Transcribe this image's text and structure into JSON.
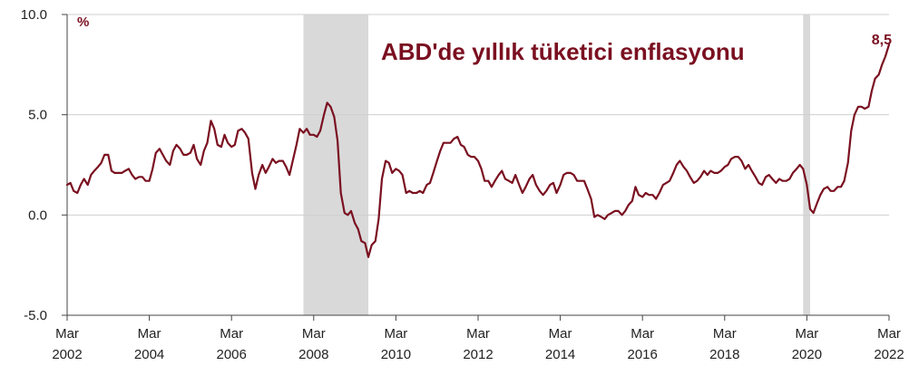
{
  "chart_data": {
    "type": "line",
    "title": "ABD'de yıllık tüketici enflasyonu",
    "unit_label": "%",
    "end_label": "8,5",
    "ylim": [
      -5.0,
      10.0
    ],
    "yticks": [
      "10.0",
      "5.0",
      "0.0",
      "-5.0"
    ],
    "ytick_values": [
      10,
      5,
      0,
      -5
    ],
    "xlim": [
      2002.17,
      2022.17
    ],
    "xticks": [
      {
        "value": 2002.17,
        "month": "Mar",
        "year": "2002"
      },
      {
        "value": 2004.17,
        "month": "Mar",
        "year": "2004"
      },
      {
        "value": 2006.17,
        "month": "Mar",
        "year": "2006"
      },
      {
        "value": 2008.17,
        "month": "Mar",
        "year": "2008"
      },
      {
        "value": 2010.17,
        "month": "Mar",
        "year": "2010"
      },
      {
        "value": 2012.17,
        "month": "Mar",
        "year": "2012"
      },
      {
        "value": 2014.17,
        "month": "Mar",
        "year": "2014"
      },
      {
        "value": 2016.17,
        "month": "Mar",
        "year": "2016"
      },
      {
        "value": 2018.17,
        "month": "Mar",
        "year": "2018"
      },
      {
        "value": 2020.17,
        "month": "Mar",
        "year": "2020"
      },
      {
        "value": 2022.17,
        "month": "Mar",
        "year": "2022"
      }
    ],
    "recessions": [
      [
        2007.92,
        2009.5
      ],
      [
        2020.08,
        2020.25
      ]
    ],
    "grid": true,
    "line_color": "#7a1020",
    "recession_color": "#d9d9d9",
    "series": [
      {
        "points": [
          [
            2002.17,
            1.5
          ],
          [
            2002.25,
            1.6
          ],
          [
            2002.33,
            1.2
          ],
          [
            2002.42,
            1.1
          ],
          [
            2002.5,
            1.5
          ],
          [
            2002.58,
            1.8
          ],
          [
            2002.67,
            1.5
          ],
          [
            2002.75,
            2.0
          ],
          [
            2002.83,
            2.2
          ],
          [
            2002.92,
            2.4
          ],
          [
            2003.0,
            2.6
          ],
          [
            2003.08,
            3.0
          ],
          [
            2003.17,
            3.0
          ],
          [
            2003.25,
            2.2
          ],
          [
            2003.33,
            2.1
          ],
          [
            2003.42,
            2.1
          ],
          [
            2003.5,
            2.1
          ],
          [
            2003.58,
            2.2
          ],
          [
            2003.67,
            2.3
          ],
          [
            2003.75,
            2.0
          ],
          [
            2003.83,
            1.8
          ],
          [
            2003.92,
            1.9
          ],
          [
            2004.0,
            1.9
          ],
          [
            2004.08,
            1.7
          ],
          [
            2004.17,
            1.7
          ],
          [
            2004.25,
            2.3
          ],
          [
            2004.33,
            3.1
          ],
          [
            2004.42,
            3.3
          ],
          [
            2004.5,
            3.0
          ],
          [
            2004.58,
            2.7
          ],
          [
            2004.67,
            2.5
          ],
          [
            2004.75,
            3.2
          ],
          [
            2004.83,
            3.5
          ],
          [
            2004.92,
            3.3
          ],
          [
            2005.0,
            3.0
          ],
          [
            2005.08,
            3.0
          ],
          [
            2005.17,
            3.1
          ],
          [
            2005.25,
            3.5
          ],
          [
            2005.33,
            2.8
          ],
          [
            2005.42,
            2.5
          ],
          [
            2005.5,
            3.2
          ],
          [
            2005.58,
            3.6
          ],
          [
            2005.67,
            4.7
          ],
          [
            2005.75,
            4.3
          ],
          [
            2005.83,
            3.5
          ],
          [
            2005.92,
            3.4
          ],
          [
            2006.0,
            4.0
          ],
          [
            2006.08,
            3.6
          ],
          [
            2006.17,
            3.4
          ],
          [
            2006.25,
            3.5
          ],
          [
            2006.33,
            4.2
          ],
          [
            2006.42,
            4.3
          ],
          [
            2006.5,
            4.1
          ],
          [
            2006.58,
            3.8
          ],
          [
            2006.67,
            2.1
          ],
          [
            2006.75,
            1.3
          ],
          [
            2006.83,
            2.0
          ],
          [
            2006.92,
            2.5
          ],
          [
            2007.0,
            2.1
          ],
          [
            2007.08,
            2.4
          ],
          [
            2007.17,
            2.8
          ],
          [
            2007.25,
            2.6
          ],
          [
            2007.33,
            2.7
          ],
          [
            2007.42,
            2.7
          ],
          [
            2007.5,
            2.4
          ],
          [
            2007.58,
            2.0
          ],
          [
            2007.67,
            2.8
          ],
          [
            2007.75,
            3.5
          ],
          [
            2007.83,
            4.3
          ],
          [
            2007.92,
            4.1
          ],
          [
            2008.0,
            4.3
          ],
          [
            2008.08,
            4.0
          ],
          [
            2008.17,
            4.0
          ],
          [
            2008.25,
            3.9
          ],
          [
            2008.33,
            4.2
          ],
          [
            2008.42,
            5.0
          ],
          [
            2008.5,
            5.6
          ],
          [
            2008.58,
            5.4
          ],
          [
            2008.67,
            4.9
          ],
          [
            2008.75,
            3.7
          ],
          [
            2008.83,
            1.1
          ],
          [
            2008.92,
            0.1
          ],
          [
            2009.0,
            0.0
          ],
          [
            2009.08,
            0.2
          ],
          [
            2009.17,
            -0.4
          ],
          [
            2009.25,
            -0.7
          ],
          [
            2009.33,
            -1.3
          ],
          [
            2009.42,
            -1.4
          ],
          [
            2009.5,
            -2.1
          ],
          [
            2009.58,
            -1.5
          ],
          [
            2009.67,
            -1.3
          ],
          [
            2009.75,
            -0.2
          ],
          [
            2009.83,
            1.8
          ],
          [
            2009.92,
            2.7
          ],
          [
            2010.0,
            2.6
          ],
          [
            2010.08,
            2.1
          ],
          [
            2010.17,
            2.3
          ],
          [
            2010.25,
            2.2
          ],
          [
            2010.33,
            2.0
          ],
          [
            2010.42,
            1.1
          ],
          [
            2010.5,
            1.2
          ],
          [
            2010.58,
            1.1
          ],
          [
            2010.67,
            1.1
          ],
          [
            2010.75,
            1.2
          ],
          [
            2010.83,
            1.1
          ],
          [
            2010.92,
            1.5
          ],
          [
            2011.0,
            1.6
          ],
          [
            2011.08,
            2.1
          ],
          [
            2011.17,
            2.7
          ],
          [
            2011.25,
            3.2
          ],
          [
            2011.33,
            3.6
          ],
          [
            2011.42,
            3.6
          ],
          [
            2011.5,
            3.6
          ],
          [
            2011.58,
            3.8
          ],
          [
            2011.67,
            3.9
          ],
          [
            2011.75,
            3.5
          ],
          [
            2011.83,
            3.4
          ],
          [
            2011.92,
            3.0
          ],
          [
            2012.0,
            2.9
          ],
          [
            2012.08,
            2.9
          ],
          [
            2012.17,
            2.7
          ],
          [
            2012.25,
            2.3
          ],
          [
            2012.33,
            1.7
          ],
          [
            2012.42,
            1.7
          ],
          [
            2012.5,
            1.4
          ],
          [
            2012.58,
            1.7
          ],
          [
            2012.67,
            2.0
          ],
          [
            2012.75,
            2.2
          ],
          [
            2012.83,
            1.8
          ],
          [
            2012.92,
            1.7
          ],
          [
            2013.0,
            1.6
          ],
          [
            2013.08,
            2.0
          ],
          [
            2013.17,
            1.5
          ],
          [
            2013.25,
            1.1
          ],
          [
            2013.33,
            1.4
          ],
          [
            2013.42,
            1.8
          ],
          [
            2013.5,
            2.0
          ],
          [
            2013.58,
            1.5
          ],
          [
            2013.67,
            1.2
          ],
          [
            2013.75,
            1.0
          ],
          [
            2013.83,
            1.2
          ],
          [
            2013.92,
            1.5
          ],
          [
            2014.0,
            1.6
          ],
          [
            2014.08,
            1.1
          ],
          [
            2014.17,
            1.5
          ],
          [
            2014.25,
            2.0
          ],
          [
            2014.33,
            2.1
          ],
          [
            2014.42,
            2.1
          ],
          [
            2014.5,
            2.0
          ],
          [
            2014.58,
            1.7
          ],
          [
            2014.67,
            1.7
          ],
          [
            2014.75,
            1.7
          ],
          [
            2014.83,
            1.3
          ],
          [
            2014.92,
            0.8
          ],
          [
            2015.0,
            -0.1
          ],
          [
            2015.08,
            0.0
          ],
          [
            2015.17,
            -0.1
          ],
          [
            2015.25,
            -0.2
          ],
          [
            2015.33,
            0.0
          ],
          [
            2015.42,
            0.1
          ],
          [
            2015.5,
            0.2
          ],
          [
            2015.58,
            0.2
          ],
          [
            2015.67,
            0.0
          ],
          [
            2015.75,
            0.2
          ],
          [
            2015.83,
            0.5
          ],
          [
            2015.92,
            0.7
          ],
          [
            2016.0,
            1.4
          ],
          [
            2016.08,
            1.0
          ],
          [
            2016.17,
            0.9
          ],
          [
            2016.25,
            1.1
          ],
          [
            2016.33,
            1.0
          ],
          [
            2016.42,
            1.0
          ],
          [
            2016.5,
            0.8
          ],
          [
            2016.58,
            1.1
          ],
          [
            2016.67,
            1.5
          ],
          [
            2016.75,
            1.6
          ],
          [
            2016.83,
            1.7
          ],
          [
            2016.92,
            2.1
          ],
          [
            2017.0,
            2.5
          ],
          [
            2017.08,
            2.7
          ],
          [
            2017.17,
            2.4
          ],
          [
            2017.25,
            2.2
          ],
          [
            2017.33,
            1.9
          ],
          [
            2017.42,
            1.6
          ],
          [
            2017.5,
            1.7
          ],
          [
            2017.58,
            1.9
          ],
          [
            2017.67,
            2.2
          ],
          [
            2017.75,
            2.0
          ],
          [
            2017.83,
            2.2
          ],
          [
            2017.92,
            2.1
          ],
          [
            2018.0,
            2.1
          ],
          [
            2018.08,
            2.2
          ],
          [
            2018.17,
            2.4
          ],
          [
            2018.25,
            2.5
          ],
          [
            2018.33,
            2.8
          ],
          [
            2018.42,
            2.9
          ],
          [
            2018.5,
            2.9
          ],
          [
            2018.58,
            2.7
          ],
          [
            2018.67,
            2.3
          ],
          [
            2018.75,
            2.5
          ],
          [
            2018.83,
            2.2
          ],
          [
            2018.92,
            1.9
          ],
          [
            2019.0,
            1.6
          ],
          [
            2019.08,
            1.5
          ],
          [
            2019.17,
            1.9
          ],
          [
            2019.25,
            2.0
          ],
          [
            2019.33,
            1.8
          ],
          [
            2019.42,
            1.6
          ],
          [
            2019.5,
            1.8
          ],
          [
            2019.58,
            1.7
          ],
          [
            2019.67,
            1.7
          ],
          [
            2019.75,
            1.8
          ],
          [
            2019.83,
            2.1
          ],
          [
            2019.92,
            2.3
          ],
          [
            2020.0,
            2.5
          ],
          [
            2020.08,
            2.3
          ],
          [
            2020.17,
            1.5
          ],
          [
            2020.25,
            0.3
          ],
          [
            2020.33,
            0.1
          ],
          [
            2020.42,
            0.6
          ],
          [
            2020.5,
            1.0
          ],
          [
            2020.58,
            1.3
          ],
          [
            2020.67,
            1.4
          ],
          [
            2020.75,
            1.2
          ],
          [
            2020.83,
            1.2
          ],
          [
            2020.92,
            1.4
          ],
          [
            2021.0,
            1.4
          ],
          [
            2021.08,
            1.7
          ],
          [
            2021.17,
            2.6
          ],
          [
            2021.25,
            4.2
          ],
          [
            2021.33,
            5.0
          ],
          [
            2021.42,
            5.4
          ],
          [
            2021.5,
            5.4
          ],
          [
            2021.58,
            5.3
          ],
          [
            2021.67,
            5.4
          ],
          [
            2021.75,
            6.2
          ],
          [
            2021.83,
            6.8
          ],
          [
            2021.92,
            7.0
          ],
          [
            2022.0,
            7.5
          ],
          [
            2022.08,
            7.9
          ],
          [
            2022.17,
            8.5
          ]
        ]
      }
    ]
  }
}
